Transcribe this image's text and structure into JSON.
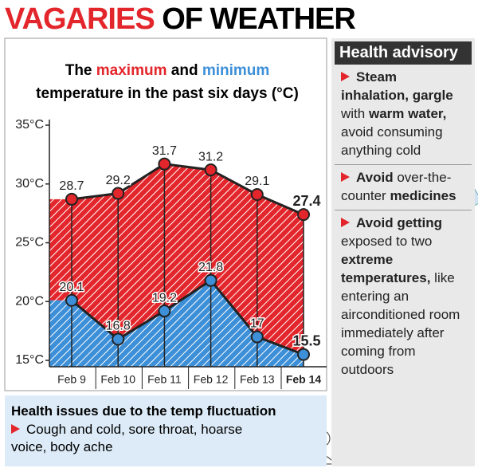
{
  "header": {
    "highlight": "VAGARIES",
    "rest": "OF WEATHER"
  },
  "chart_data": {
    "type": "line",
    "title_parts": [
      "The",
      "maximum",
      "and",
      "minimum",
      "temperature in the past six days (°C)"
    ],
    "categories": [
      "Feb 9",
      "Feb 10",
      "Feb 11",
      "Feb 12",
      "Feb 13",
      "Feb 14"
    ],
    "series": [
      {
        "name": "maximum",
        "color": "#e3262b",
        "values": [
          28.7,
          29.2,
          31.7,
          31.2,
          29.1,
          27.4
        ]
      },
      {
        "name": "minimum",
        "color": "#3d8fd8",
        "values": [
          20.1,
          16.8,
          19.2,
          21.8,
          17,
          15.5
        ]
      }
    ],
    "ylim": [
      15,
      35
    ],
    "yticks": [
      {
        "value": 15,
        "label": "15°C"
      },
      {
        "value": 20,
        "label": "20°C"
      },
      {
        "value": 25,
        "label": "25°C"
      },
      {
        "value": 30,
        "label": "30°C"
      },
      {
        "value": 35,
        "label": "35°C"
      }
    ]
  },
  "issues": {
    "title": "Health issues due to the temp fluctuation",
    "text": "Cough and cold, sore throat, hoarse voice, body ache"
  },
  "advisory": {
    "title": "Health advisory",
    "items": [
      [
        {
          "text": "Steam inhalation, gargle",
          "bold": true
        },
        {
          "text": "with",
          "bold": false
        },
        {
          "text": "warm water,",
          "bold": true
        },
        {
          "text": "avoid consuming anything cold",
          "bold": false
        }
      ],
      [
        {
          "text": "Avoid",
          "bold": true
        },
        {
          "text": "over-the-counter",
          "bold": false
        },
        {
          "text": "medicines",
          "bold": true
        }
      ],
      [
        {
          "text": "Avoid getting",
          "bold": true
        },
        {
          "text": "exposed to two",
          "bold": false
        },
        {
          "text": "extreme temperatures,",
          "bold": true
        },
        {
          "text": "like entering an airconditioned room immediately after coming from outdoors",
          "bold": false
        }
      ]
    ]
  }
}
